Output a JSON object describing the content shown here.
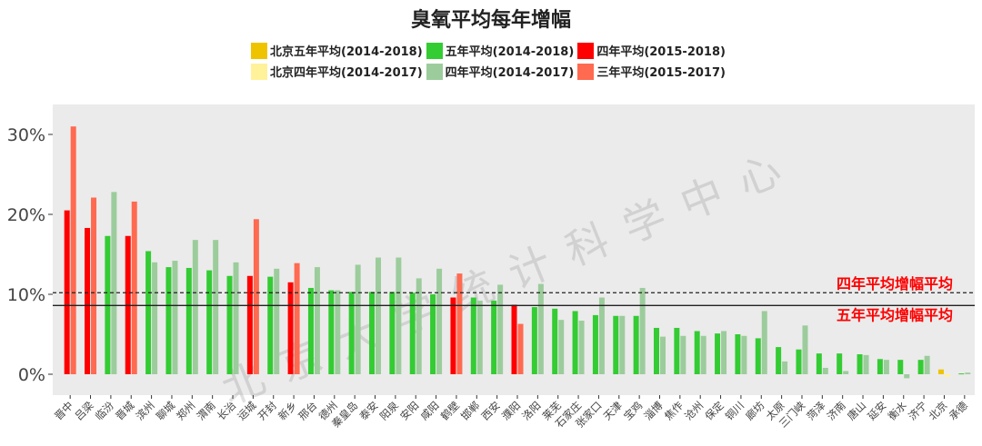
{
  "chart_data": {
    "type": "bar",
    "title": "臭氧平均每年增幅",
    "xlabel": "",
    "ylabel": "",
    "ylim": [
      -2.5,
      33
    ],
    "yticks": [
      "0%",
      "10%",
      "20%",
      "30%"
    ],
    "grid": false,
    "legend_position": "top",
    "watermark": "北京大学统计科学中心",
    "legend": [
      {
        "key": "bj5",
        "name": "北京五年平均(2014-2018)",
        "color": "#eec400"
      },
      {
        "key": "g5",
        "name": "五年平均(2014-2018)",
        "color": "#33cc33"
      },
      {
        "key": "r4",
        "name": "四年平均(2015-2018)",
        "color": "#ff0000"
      },
      {
        "key": "bj4",
        "name": "北京四年平均(2014-2017)",
        "color": "#fff29a"
      },
      {
        "key": "g4",
        "name": "四年平均(2014-2017)",
        "color": "#9ccc9c"
      },
      {
        "key": "r3",
        "name": "三年平均(2015-2017)",
        "color": "#ff6a50"
      }
    ],
    "reference_lines": [
      {
        "label": "四年平均增幅平均",
        "value": 10.2,
        "style": "dashed"
      },
      {
        "label": "五年平均增幅平均",
        "value": 8.6,
        "style": "solid"
      }
    ],
    "categories": [
      "晋中",
      "吕梁",
      "临汾",
      "晋城",
      "滨州",
      "聊城",
      "郑州",
      "渭南",
      "长治",
      "运城",
      "开封",
      "新乡",
      "邢台",
      "德州",
      "秦皇岛",
      "泰安",
      "阳泉",
      "安阳",
      "咸阳",
      "鹤壁",
      "邯郸",
      "西安",
      "濮阳",
      "洛阳",
      "莱芜",
      "石家庄",
      "张家口",
      "天津",
      "宝鸡",
      "淄博",
      "焦作",
      "沧州",
      "保定",
      "铜川",
      "廊坊",
      "太原",
      "三门峡",
      "菏泽",
      "济南",
      "唐山",
      "延安",
      "衡水",
      "济宁",
      "北京",
      "承德"
    ],
    "groups": [
      "r",
      "r",
      "g",
      "r",
      "g",
      "g",
      "g",
      "g",
      "g",
      "r",
      "g",
      "r",
      "g",
      "g",
      "g",
      "g",
      "g",
      "g",
      "g",
      "r",
      "g",
      "g",
      "r",
      "g",
      "g",
      "g",
      "g",
      "g",
      "g",
      "g",
      "g",
      "g",
      "g",
      "g",
      "g",
      "g",
      "g",
      "g",
      "g",
      "g",
      "g",
      "g",
      "g",
      "bj",
      "g"
    ],
    "first_values": [
      20.5,
      18.3,
      17.3,
      17.3,
      15.4,
      13.4,
      13.3,
      13.0,
      12.3,
      12.3,
      12.2,
      11.5,
      10.8,
      10.5,
      10.3,
      10.3,
      10.3,
      10.2,
      10.0,
      9.6,
      9.6,
      9.2,
      8.7,
      8.4,
      8.2,
      7.9,
      7.4,
      7.3,
      7.3,
      5.8,
      5.8,
      5.4,
      5.1,
      5.0,
      4.5,
      3.4,
      3.1,
      2.6,
      2.6,
      2.5,
      1.9,
      1.8,
      1.8,
      0.6,
      0.1
    ],
    "second_values": [
      31.0,
      22.1,
      22.8,
      21.6,
      14.0,
      14.2,
      16.8,
      16.8,
      14.0,
      19.4,
      13.2,
      13.9,
      13.4,
      10.5,
      13.7,
      14.6,
      14.6,
      12.0,
      13.2,
      12.6,
      9.2,
      11.2,
      6.3,
      11.3,
      6.8,
      6.7,
      9.6,
      7.3,
      10.8,
      4.7,
      4.8,
      4.8,
      5.4,
      4.8,
      7.9,
      1.6,
      6.1,
      0.8,
      0.4,
      2.4,
      1.8,
      -0.5,
      2.3,
      -0.3,
      0.2
    ]
  }
}
